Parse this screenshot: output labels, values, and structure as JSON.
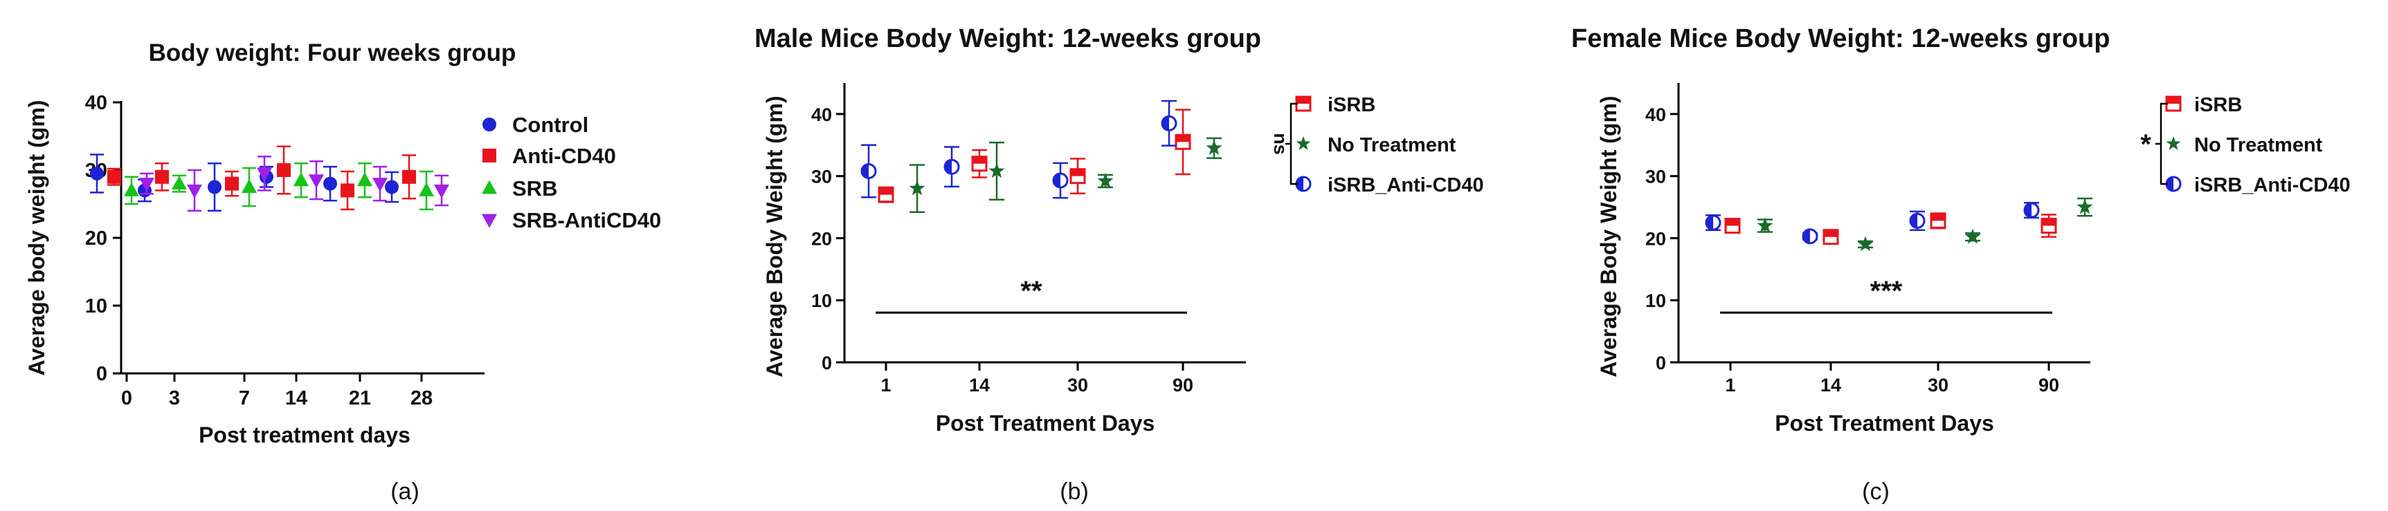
{
  "chart_data": [
    {
      "panel": "a",
      "type": "scatter",
      "title": "Body weight: Four weeks group",
      "xlabel": "Post treatment days",
      "ylabel": "Average body weight (gm)",
      "ylim": [
        0,
        40
      ],
      "yticks": [
        0,
        10,
        20,
        30,
        40
      ],
      "categories": [
        "0",
        "3",
        "7",
        "14",
        "21",
        "28"
      ],
      "series": [
        {
          "name": "Control",
          "color": "#1d24d6",
          "marker": "circle",
          "values": [
            29.5,
            27.0,
            27.5,
            29.0,
            28.0,
            27.5
          ],
          "errors": [
            2.8,
            1.6,
            3.5,
            1.5,
            2.5,
            2.2
          ]
        },
        {
          "name": "Anti-CD40",
          "color": "#e8141c",
          "marker": "square",
          "values": [
            29.0,
            29.0,
            28.0,
            30.0,
            27.0,
            29.0
          ],
          "errors": [
            1.2,
            2.0,
            1.8,
            3.5,
            2.8,
            3.2
          ]
        },
        {
          "name": "SRB",
          "color": "#18c21a",
          "marker": "triangle",
          "values": [
            27.0,
            28.0,
            27.5,
            28.5,
            28.5,
            27.0
          ],
          "errors": [
            2.0,
            1.2,
            2.8,
            2.5,
            2.5,
            2.8
          ]
        },
        {
          "name": "SRB-AntiCD40",
          "color": "#a020e8",
          "marker": "triangle-down",
          "values": [
            28.0,
            27.0,
            29.5,
            28.5,
            28.0,
            27.0
          ],
          "errors": [
            1.5,
            3.0,
            2.5,
            2.8,
            2.5,
            2.2
          ]
        }
      ],
      "caption": "(a)"
    },
    {
      "panel": "b",
      "type": "scatter",
      "title": "Male Mice Body Weight: 12-weeks group",
      "xlabel": "Post Treatment Days",
      "ylabel": "Average Body Weight (gm)",
      "ylim": [
        0,
        45
      ],
      "yticks": [
        0,
        10,
        20,
        30,
        40
      ],
      "categories": [
        "1",
        "14",
        "30",
        "90"
      ],
      "series": [
        {
          "name": "iSRB",
          "color": "#e8141c",
          "marker": "half-square",
          "values": [
            27.0,
            32.0,
            30.0,
            35.5
          ],
          "errors": [
            1.2,
            2.2,
            2.8,
            5.2
          ]
        },
        {
          "name": "No Treatment",
          "color": "#1a6b2a",
          "marker": "star",
          "values": [
            28.0,
            30.8,
            29.2,
            34.5
          ],
          "errors": [
            3.8,
            4.6,
            1.0,
            1.6
          ]
        },
        {
          "name": "iSRB_Anti-CD40",
          "color": "#1d24d6",
          "marker": "half-circle",
          "values": [
            30.8,
            31.5,
            29.3,
            38.5
          ],
          "errors": [
            4.2,
            3.2,
            2.8,
            3.6
          ]
        }
      ],
      "legend_annotation": "ns",
      "significance": "**",
      "caption": "(b)"
    },
    {
      "panel": "c",
      "type": "scatter",
      "title": "Female Mice Body Weight: 12-weeks group",
      "xlabel": "Post Treatment Days",
      "ylabel": "Average Body Weight (gm)",
      "ylim": [
        0,
        45
      ],
      "yticks": [
        0,
        10,
        20,
        30,
        40
      ],
      "categories": [
        "1",
        "14",
        "30",
        "90"
      ],
      "series": [
        {
          "name": "iSRB",
          "color": "#e8141c",
          "marker": "half-square",
          "values": [
            22.0,
            20.2,
            22.8,
            22.0
          ],
          "errors": [
            0.8,
            0.6,
            1.2,
            1.8
          ]
        },
        {
          "name": "No Treatment",
          "color": "#1a6b2a",
          "marker": "star",
          "values": [
            22.0,
            19.0,
            20.2,
            25.0
          ],
          "errors": [
            1.0,
            0.5,
            0.6,
            1.4
          ]
        },
        {
          "name": "iSRB_Anti-CD40",
          "color": "#1d24d6",
          "marker": "half-circle",
          "values": [
            22.5,
            20.3,
            22.8,
            24.5
          ],
          "errors": [
            1.2,
            0.5,
            1.5,
            1.2
          ]
        }
      ],
      "legend_annotation": "*",
      "significance": "***",
      "caption": "(c)"
    }
  ]
}
